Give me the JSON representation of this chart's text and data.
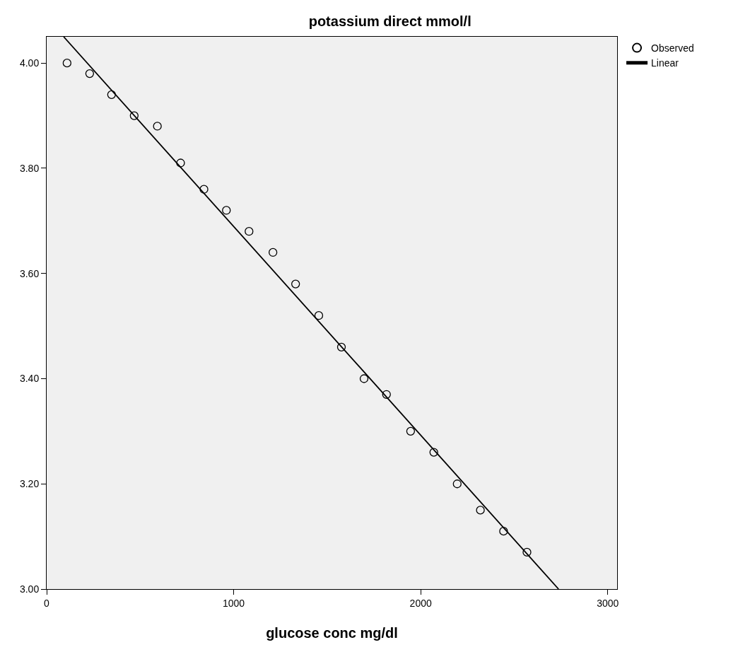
{
  "chart_data": {
    "type": "scatter",
    "title": "potassium direct mmol/l",
    "xlabel": "glucose conc mg/dl",
    "xlim": [
      0,
      3050
    ],
    "xticks": [
      0,
      1000,
      2000,
      3000
    ],
    "ylim": [
      3.0,
      4.05
    ],
    "yticks": [
      {
        "value": 3.0,
        "label": "3.00"
      },
      {
        "value": 3.2,
        "label": "3.20"
      },
      {
        "value": 3.4,
        "label": "3.40"
      },
      {
        "value": 3.6,
        "label": "3.60"
      },
      {
        "value": 3.8,
        "label": "3.80"
      },
      {
        "value": 4.0,
        "label": "4.00"
      }
    ],
    "grid": false,
    "legend": "top right",
    "marker": "circle",
    "series": [
      {
        "name": "Observed",
        "color": "#000000",
        "x": [
          109,
          230,
          347,
          468,
          592,
          716,
          841,
          961,
          1082,
          1210,
          1331,
          1455,
          1576,
          1697,
          1817,
          1946,
          2070,
          2195,
          2319,
          2443,
          2568
        ],
        "values": [
          4.0,
          3.98,
          3.94,
          3.9,
          3.88,
          3.81,
          3.76,
          3.72,
          3.68,
          3.64,
          3.58,
          3.52,
          3.46,
          3.4,
          3.37,
          3.3,
          3.26,
          3.2,
          3.15,
          3.11,
          3.07
        ]
      },
      {
        "name": "Linear",
        "type": "line",
        "color": "#000000",
        "marker": "none",
        "line_style": "solid",
        "x": [
          91,
          2737
        ],
        "values": [
          4.05,
          3.0
        ]
      }
    ]
  }
}
